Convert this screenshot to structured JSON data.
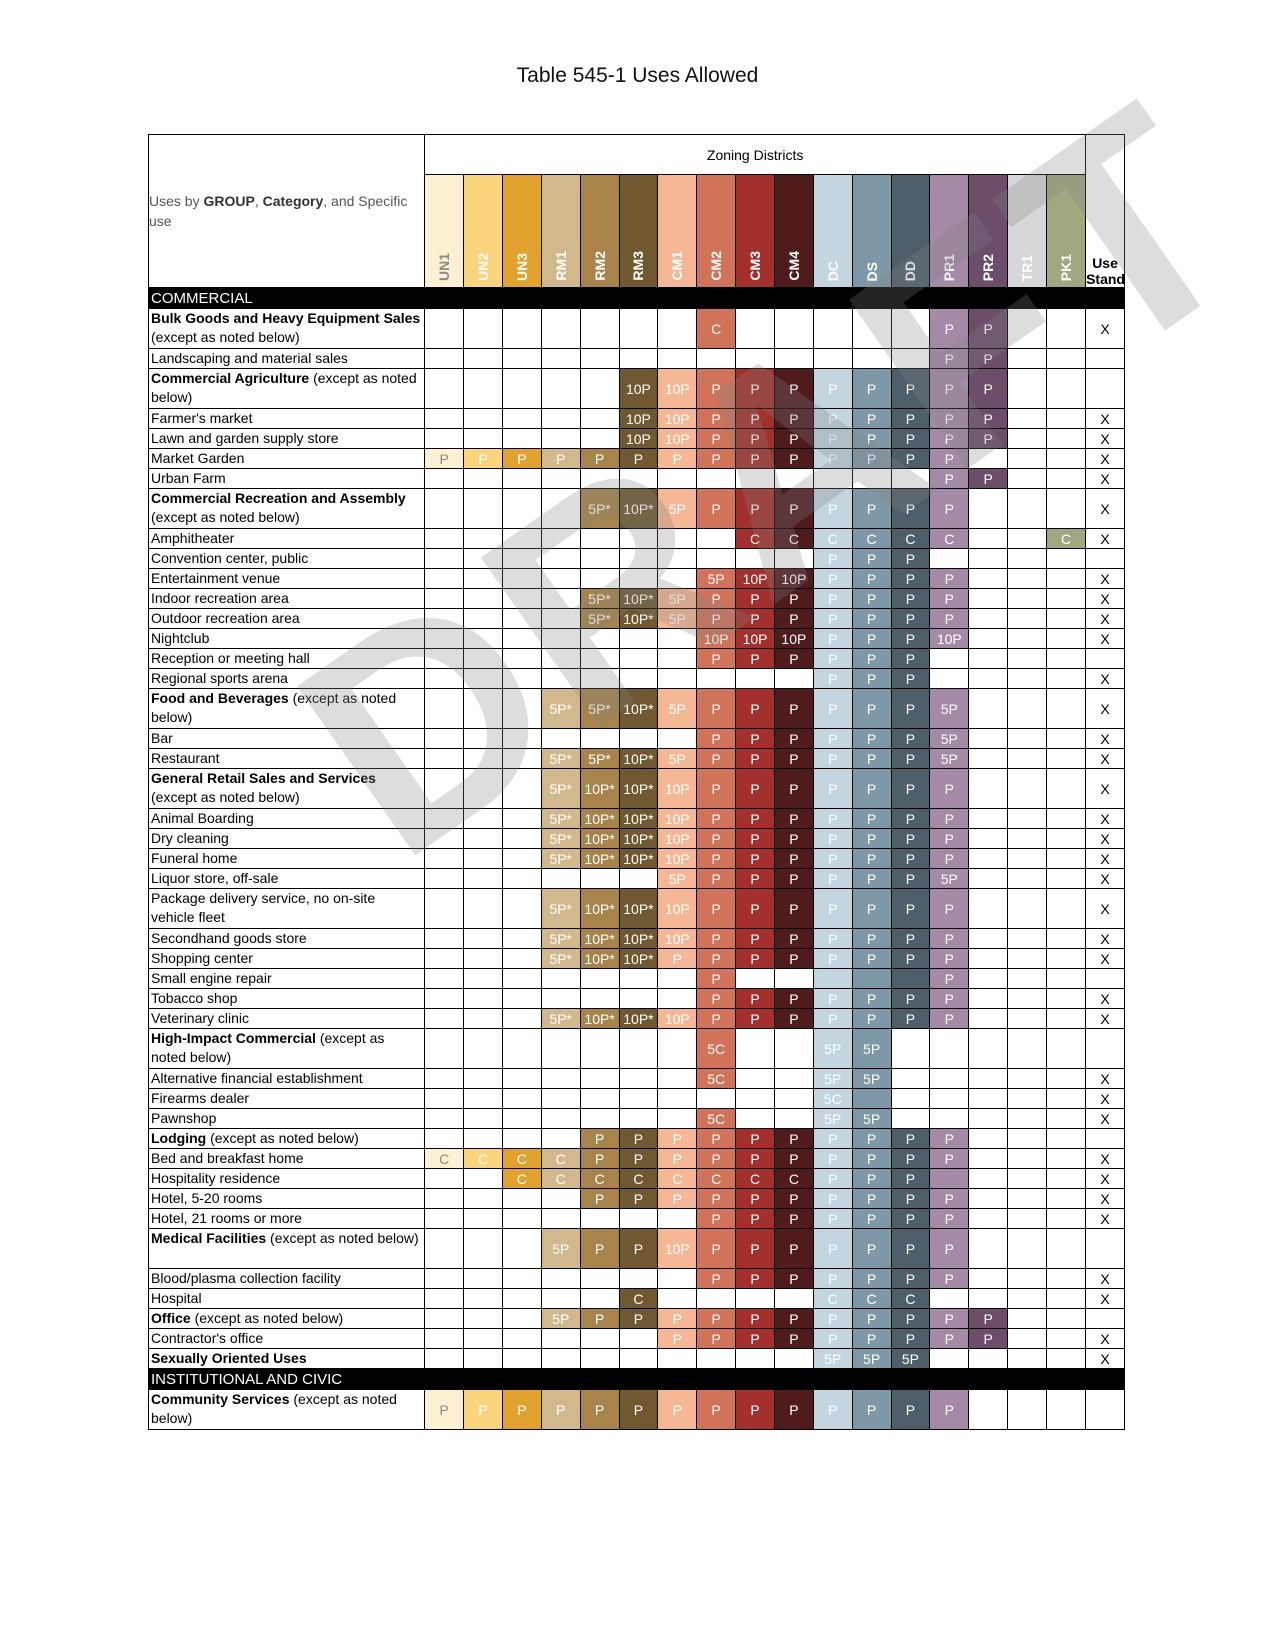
{
  "title": "Table 545-1 Uses Allowed",
  "watermark": "DRAFT",
  "header": {
    "uses_prefix": "Uses by ",
    "uses_group": "GROUP",
    "uses_sep1": ", ",
    "uses_category": "Category",
    "uses_suffix": ", and Specific use",
    "zoning_districts": "Zoning Districts",
    "use_standard": "Use Standard"
  },
  "districts": [
    {
      "code": "UN1",
      "color": "#fdf1d3",
      "text": "#8a8a8a"
    },
    {
      "code": "UN2",
      "color": "#fbd57d",
      "text": "#ffffff"
    },
    {
      "code": "UN3",
      "color": "#e2a22e",
      "text": "#ffffff"
    },
    {
      "code": "RM1",
      "color": "#d1b98d",
      "text": "#ffffff"
    },
    {
      "code": "RM2",
      "color": "#a8844a",
      "text": "#ffffff"
    },
    {
      "code": "RM3",
      "color": "#705930",
      "text": "#ffffff"
    },
    {
      "code": "CM1",
      "color": "#f6b894",
      "text": "#ffffff"
    },
    {
      "code": "CM2",
      "color": "#d17358",
      "text": "#ffffff"
    },
    {
      "code": "CM3",
      "color": "#a3302c",
      "text": "#ffffff"
    },
    {
      "code": "CM4",
      "color": "#4f1b1d",
      "text": "#ffffff"
    },
    {
      "code": "DC",
      "color": "#c3d5df",
      "text": "#ffffff"
    },
    {
      "code": "DS",
      "color": "#7e98a8",
      "text": "#ffffff"
    },
    {
      "code": "DD",
      "color": "#4f5f69",
      "text": "#ffffff"
    },
    {
      "code": "PR1",
      "color": "#a48aa6",
      "text": "#ffffff"
    },
    {
      "code": "PR2",
      "color": "#6c4e6a",
      "text": "#ffffff"
    },
    {
      "code": "TR1",
      "color": "#d7d7d9",
      "text": "#ffffff"
    },
    {
      "code": "PK1",
      "color": "#a3a77f",
      "text": "#ffffff"
    }
  ],
  "rows": [
    {
      "section": "COMMERCIAL"
    },
    {
      "use": "Bulk Goods and Heavy Equipment Sales",
      "rest": " (except as noted below)",
      "bold": true,
      "tall": true,
      "cells": [
        "",
        "",
        "",
        "",
        "",
        "",
        "",
        "C",
        "",
        "",
        "",
        "",
        "",
        "P",
        "P",
        "",
        ""
      ],
      "std": "X"
    },
    {
      "use": "Landscaping and material sales",
      "cells": [
        "",
        "",
        "",
        "",
        "",
        "",
        "",
        "",
        "",
        "",
        "",
        "",
        "",
        "P",
        "P",
        "",
        ""
      ],
      "std": ""
    },
    {
      "use": "Commercial Agriculture",
      "rest": " (except as noted below)",
      "bold": true,
      "tall": true,
      "cells": [
        "",
        "",
        "",
        "",
        "",
        "10P",
        "10P",
        "P",
        "P",
        "P",
        "P",
        "P",
        "P",
        "P",
        "P",
        "",
        ""
      ],
      "std": ""
    },
    {
      "use": "Farmer's market",
      "cells": [
        "",
        "",
        "",
        "",
        "",
        "10P",
        "10P",
        "P",
        "P",
        "P",
        "P",
        "P",
        "P",
        "P",
        "P",
        "",
        ""
      ],
      "std": "X"
    },
    {
      "use": "Lawn and garden supply store",
      "cells": [
        "",
        "",
        "",
        "",
        "",
        "10P",
        "10P",
        "P",
        "P",
        "P",
        "P",
        "P",
        "P",
        "P",
        "P",
        "",
        ""
      ],
      "std": "X"
    },
    {
      "use": "Market Garden",
      "cells": [
        "P",
        "P",
        "P",
        "P",
        "P",
        "P",
        "P",
        "P",
        "P",
        "P",
        "P",
        "P",
        "P",
        "P",
        "",
        "",
        ""
      ],
      "std": "X"
    },
    {
      "use": "Urban Farm",
      "cells": [
        "",
        "",
        "",
        "",
        "",
        "",
        "",
        "",
        "",
        "",
        "",
        "",
        "",
        "P",
        "P",
        "",
        ""
      ],
      "std": "X"
    },
    {
      "use": "Commercial Recreation and Assembly",
      "rest": " (except as noted below)",
      "bold": true,
      "tall": true,
      "cells": [
        "",
        "",
        "",
        "",
        "5P*",
        "10P*",
        "5P",
        "P",
        "P",
        "P",
        "P",
        "P",
        "P",
        "P",
        "",
        "",
        ""
      ],
      "std": "X"
    },
    {
      "use": "Amphitheater",
      "cells": [
        "",
        "",
        "",
        "",
        "",
        "",
        "",
        "",
        "C",
        "C",
        "C",
        "C",
        "C",
        "C",
        "",
        "",
        "C"
      ],
      "std": "X"
    },
    {
      "use": "Convention center, public",
      "cells": [
        "",
        "",
        "",
        "",
        "",
        "",
        "",
        "",
        "",
        "",
        "P",
        "P",
        "P",
        "",
        "",
        "",
        ""
      ],
      "std": ""
    },
    {
      "use": "Entertainment venue",
      "cells": [
        "",
        "",
        "",
        "",
        "",
        "",
        "",
        "5P",
        "10P",
        "10P",
        "P",
        "P",
        "P",
        "P",
        "",
        "",
        ""
      ],
      "std": "X"
    },
    {
      "use": "Indoor recreation area",
      "cells": [
        "",
        "",
        "",
        "",
        "5P*",
        "10P*",
        "5P",
        "P",
        "P",
        "P",
        "P",
        "P",
        "P",
        "P",
        "",
        "",
        ""
      ],
      "std": "X"
    },
    {
      "use": "Outdoor recreation area",
      "cells": [
        "",
        "",
        "",
        "",
        "5P*",
        "10P*",
        "5P",
        "P",
        "P",
        "P",
        "P",
        "P",
        "P",
        "P",
        "",
        "",
        ""
      ],
      "std": "X"
    },
    {
      "use": "Nightclub",
      "cells": [
        "",
        "",
        "",
        "",
        "",
        "",
        "",
        "10P",
        "10P",
        "10P",
        "P",
        "P",
        "P",
        "10P",
        "",
        "",
        ""
      ],
      "std": "X"
    },
    {
      "use": "Reception or meeting hall",
      "cells": [
        "",
        "",
        "",
        "",
        "",
        "",
        "",
        "P",
        "P",
        "P",
        "P",
        "P",
        "P",
        "",
        "",
        "",
        ""
      ],
      "std": ""
    },
    {
      "use": "Regional sports arena",
      "cells": [
        "",
        "",
        "",
        "",
        "",
        "",
        "",
        "",
        "",
        "",
        "P",
        "P",
        "P",
        "",
        "",
        "",
        ""
      ],
      "std": "X"
    },
    {
      "use": "Food and Beverages",
      "rest": " (except as noted below)",
      "bold": true,
      "tall": true,
      "cells": [
        "",
        "",
        "",
        "5P*",
        "5P*",
        "10P*",
        "5P",
        "P",
        "P",
        "P",
        "P",
        "P",
        "P",
        "5P",
        "",
        "",
        ""
      ],
      "std": "X"
    },
    {
      "use": "Bar",
      "cells": [
        "",
        "",
        "",
        "",
        "",
        "",
        "",
        "P",
        "P",
        "P",
        "P",
        "P",
        "P",
        "5P",
        "",
        "",
        ""
      ],
      "std": "X"
    },
    {
      "use": "Restaurant",
      "cells": [
        "",
        "",
        "",
        "5P*",
        "5P*",
        "10P*",
        "5P",
        "P",
        "P",
        "P",
        "P",
        "P",
        "P",
        "5P",
        "",
        "",
        ""
      ],
      "std": "X"
    },
    {
      "use": "General Retail Sales and Services",
      "rest": " (except as noted below)",
      "bold": true,
      "tall": true,
      "cells": [
        "",
        "",
        "",
        "5P*",
        "10P*",
        "10P*",
        "10P",
        "P",
        "P",
        "P",
        "P",
        "P",
        "P",
        "P",
        "",
        "",
        ""
      ],
      "std": "X"
    },
    {
      "use": "Animal Boarding",
      "cells": [
        "",
        "",
        "",
        "5P*",
        "10P*",
        "10P*",
        "10P",
        "P",
        "P",
        "P",
        "P",
        "P",
        "P",
        "P",
        "",
        "",
        ""
      ],
      "std": "X"
    },
    {
      "use": "Dry cleaning",
      "cells": [
        "",
        "",
        "",
        "5P*",
        "10P*",
        "10P*",
        "10P",
        "P",
        "P",
        "P",
        "P",
        "P",
        "P",
        "P",
        "",
        "",
        ""
      ],
      "std": "X"
    },
    {
      "use": "Funeral home",
      "cells": [
        "",
        "",
        "",
        "5P*",
        "10P*",
        "10P*",
        "10P",
        "P",
        "P",
        "P",
        "P",
        "P",
        "P",
        "P",
        "",
        "",
        ""
      ],
      "std": "X"
    },
    {
      "use": "Liquor store, off-sale",
      "cells": [
        "",
        "",
        "",
        "",
        "",
        "",
        "5P",
        "P",
        "P",
        "P",
        "P",
        "P",
        "P",
        "5P",
        "",
        "",
        ""
      ],
      "std": "X"
    },
    {
      "use": "Package delivery service, no on-site vehicle fleet",
      "tall": true,
      "cells": [
        "",
        "",
        "",
        "5P*",
        "10P*",
        "10P*",
        "10P",
        "P",
        "P",
        "P",
        "P",
        "P",
        "P",
        "P",
        "",
        "",
        ""
      ],
      "std": "X"
    },
    {
      "use": "Secondhand goods store",
      "cells": [
        "",
        "",
        "",
        "5P*",
        "10P*",
        "10P*",
        "10P",
        "P",
        "P",
        "P",
        "P",
        "P",
        "P",
        "P",
        "",
        "",
        ""
      ],
      "std": "X"
    },
    {
      "use": "Shopping center",
      "cells": [
        "",
        "",
        "",
        "5P*",
        "10P*",
        "10P*",
        "P",
        "P",
        "P",
        "P",
        "P",
        "P",
        "P",
        "P",
        "",
        "",
        ""
      ],
      "std": "X"
    },
    {
      "use": "Small engine repair",
      "cells": [
        "",
        "",
        "",
        "",
        "",
        "",
        "",
        "P",
        "",
        "",
        "",
        "",
        "",
        "P",
        "",
        "",
        ""
      ],
      "std": "",
      "fill_empty": [
        10,
        11,
        12
      ]
    },
    {
      "use": "Tobacco shop",
      "cells": [
        "",
        "",
        "",
        "",
        "",
        "",
        "",
        "P",
        "P",
        "P",
        "P",
        "P",
        "P",
        "P",
        "",
        "",
        ""
      ],
      "std": "X"
    },
    {
      "use": "Veterinary clinic",
      "cells": [
        "",
        "",
        "",
        "5P*",
        "10P*",
        "10P*",
        "10P",
        "P",
        "P",
        "P",
        "P",
        "P",
        "P",
        "P",
        "",
        "",
        ""
      ],
      "std": "X"
    },
    {
      "use": "High-Impact Commercial",
      "rest": " (except as noted below)",
      "bold": true,
      "tall": true,
      "cells": [
        "",
        "",
        "",
        "",
        "",
        "",
        "",
        "5C",
        "",
        "",
        "5P",
        "5P",
        "",
        "",
        "",
        "",
        ""
      ],
      "std": ""
    },
    {
      "use": "Alternative financial establishment",
      "cells": [
        "",
        "",
        "",
        "",
        "",
        "",
        "",
        "5C",
        "",
        "",
        "5P",
        "5P",
        "",
        "",
        "",
        "",
        ""
      ],
      "std": "X"
    },
    {
      "use": "Firearms dealer",
      "cells": [
        "",
        "",
        "",
        "",
        "",
        "",
        "",
        "",
        "",
        "",
        "5C",
        "",
        "",
        "",
        "",
        "",
        ""
      ],
      "std": "X",
      "fill_empty": [
        11
      ]
    },
    {
      "use": "Pawnshop",
      "cells": [
        "",
        "",
        "",
        "",
        "",
        "",
        "",
        "5C",
        "",
        "",
        "5P",
        "5P",
        "",
        "",
        "",
        "",
        ""
      ],
      "std": "X"
    },
    {
      "use": "Lodging",
      "rest": " (except as noted below)",
      "bold": true,
      "cells": [
        "",
        "",
        "",
        "",
        "P",
        "P",
        "P",
        "P",
        "P",
        "P",
        "P",
        "P",
        "P",
        "P",
        "",
        "",
        ""
      ],
      "std": ""
    },
    {
      "use": "Bed and breakfast home",
      "cells": [
        "C",
        "C",
        "C",
        "C",
        "P",
        "P",
        "P",
        "P",
        "P",
        "P",
        "P",
        "P",
        "P",
        "P",
        "",
        "",
        ""
      ],
      "std": "X"
    },
    {
      "use": "Hospitality residence",
      "cells": [
        "",
        "",
        "C",
        "C",
        "C",
        "C",
        "C",
        "C",
        "C",
        "C",
        "P",
        "P",
        "P",
        "",
        "",
        "",
        ""
      ],
      "std": "X",
      "fill_empty": [
        13
      ]
    },
    {
      "use": "Hotel, 5-20 rooms",
      "cells": [
        "",
        "",
        "",
        "",
        "P",
        "P",
        "P",
        "P",
        "P",
        "P",
        "P",
        "P",
        "P",
        "P",
        "",
        "",
        ""
      ],
      "std": "X"
    },
    {
      "use": "Hotel, 21 rooms or more",
      "cells": [
        "",
        "",
        "",
        "",
        "",
        "",
        "",
        "P",
        "P",
        "P",
        "P",
        "P",
        "P",
        "P",
        "",
        "",
        ""
      ],
      "std": "X"
    },
    {
      "use": "Medical Facilities",
      "rest": " (except as noted below)",
      "bold": true,
      "tall": true,
      "cells": [
        "",
        "",
        "",
        "5P",
        "P",
        "P",
        "10P",
        "P",
        "P",
        "P",
        "P",
        "P",
        "P",
        "P",
        "",
        "",
        ""
      ],
      "std": ""
    },
    {
      "use": "Blood/plasma collection facility",
      "cells": [
        "",
        "",
        "",
        "",
        "",
        "",
        "",
        "P",
        "P",
        "P",
        "P",
        "P",
        "P",
        "P",
        "",
        "",
        ""
      ],
      "std": "X"
    },
    {
      "use": "Hospital",
      "cells": [
        "",
        "",
        "",
        "",
        "",
        "C",
        "",
        "",
        "",
        "",
        "C",
        "C",
        "C",
        "",
        "",
        "",
        ""
      ],
      "std": "X"
    },
    {
      "use": "Office",
      "rest": " (except as noted below)",
      "bold": true,
      "cells": [
        "",
        "",
        "",
        "5P",
        "P",
        "P",
        "P",
        "P",
        "P",
        "P",
        "P",
        "P",
        "P",
        "P",
        "P",
        "",
        ""
      ],
      "std": ""
    },
    {
      "use": "Contractor's office",
      "cells": [
        "",
        "",
        "",
        "",
        "",
        "",
        "P",
        "P",
        "P",
        "P",
        "P",
        "P",
        "P",
        "P",
        "P",
        "",
        ""
      ],
      "std": "X"
    },
    {
      "use": "Sexually Oriented Uses",
      "bold": true,
      "cells": [
        "",
        "",
        "",
        "",
        "",
        "",
        "",
        "",
        "",
        "",
        "5P",
        "5P",
        "5P",
        "",
        "",
        "",
        ""
      ],
      "std": "X"
    },
    {
      "section": "INSTITUTIONAL AND CIVIC"
    },
    {
      "use": "Community Services",
      "rest": " (except as noted below)",
      "bold": true,
      "tall": true,
      "cells": [
        "P",
        "P",
        "P",
        "P",
        "P",
        "P",
        "P",
        "P",
        "P",
        "P",
        "P",
        "P",
        "P",
        "P",
        "",
        "",
        ""
      ],
      "std": ""
    }
  ]
}
